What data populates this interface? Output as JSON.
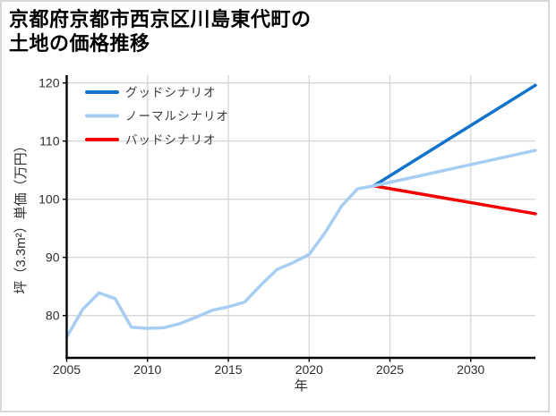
{
  "window": {
    "title_line1": "京都府京都市西京区川島東代町の",
    "title_line2": "土地の価格推移"
  },
  "chart_data": {
    "type": "line",
    "title": "京都府京都市西京区川島東代町の土地の価格推移",
    "xlabel": "年",
    "ylabel": "坪（3.3m²）単価（万円）",
    "xlim": [
      2005,
      2034
    ],
    "ylim": [
      72.7,
      121.3
    ],
    "xticks": [
      "2005",
      "2010",
      "2015",
      "2020",
      "2025",
      "2030"
    ],
    "yticks": [
      "80",
      "90",
      "100",
      "110",
      "120"
    ],
    "grid": true,
    "legend_position": "upper-left",
    "colors": {
      "good": "#1273cc",
      "normal": "#a8cdf3",
      "bad": "#f20000",
      "grid": "#d7d7d7",
      "axis": "#000000"
    },
    "series": [
      {
        "id": "good-scenario",
        "name": "グッドシナリオ",
        "in_legend": true,
        "z": 0,
        "color": "#1273cc",
        "x": [
          2024,
          2034
        ],
        "values": [
          102.3,
          119.6
        ]
      },
      {
        "id": "normal-scenario",
        "name": "ノーマルシナリオ",
        "in_legend": true,
        "z": 1,
        "color": "#a8cdf3",
        "x": [
          2024,
          2034
        ],
        "values": [
          102.3,
          108.4
        ]
      },
      {
        "id": "bad-scenario",
        "name": "バッドシナリオ",
        "in_legend": true,
        "z": 0,
        "color": "#f20000",
        "x": [
          2024,
          2034
        ],
        "values": [
          102.3,
          97.5
        ]
      },
      {
        "id": "historical",
        "name": "",
        "in_legend": false,
        "z": 1,
        "color": "#a8cdf3",
        "x": [
          2005,
          2006,
          2007,
          2008,
          2009,
          2010,
          2011,
          2012,
          2013,
          2014,
          2015,
          2016,
          2017,
          2018,
          2019,
          2020,
          2021,
          2022,
          2023,
          2024
        ],
        "values": [
          76.3,
          81.1,
          83.9,
          82.9,
          78.0,
          77.8,
          77.9,
          78.6,
          79.7,
          80.9,
          81.5,
          82.3,
          85.2,
          87.9,
          89.1,
          90.5,
          94.3,
          98.8,
          101.8,
          102.3
        ]
      }
    ]
  }
}
